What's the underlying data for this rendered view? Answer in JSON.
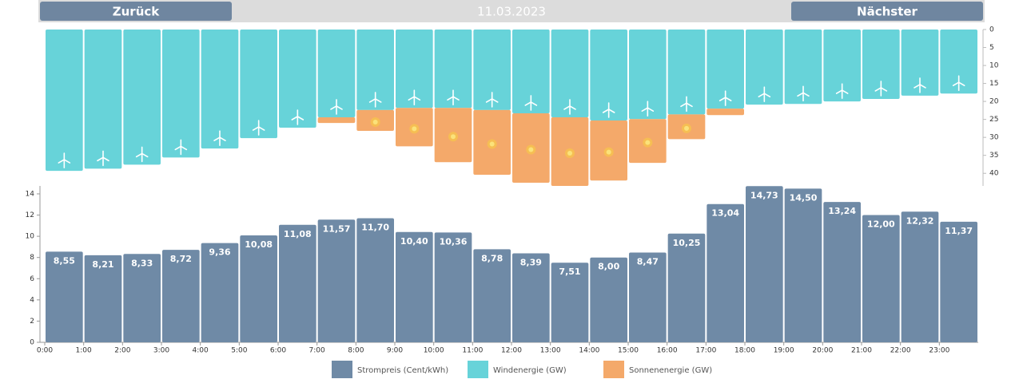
{
  "nav": {
    "back": "Zurück",
    "date": "11.03.2023",
    "next": "Nächster"
  },
  "chart_data": [
    {
      "type": "stacked_bar",
      "y_inverted": true,
      "y_axis_side": "right",
      "ylim": [
        0,
        43.5
      ],
      "yticks": [
        0,
        5,
        10,
        15,
        20,
        25,
        30,
        35,
        40
      ],
      "series": [
        {
          "name": "Windenergie (GW)",
          "color": "#67d3d9",
          "values": [
            39.3,
            38.7,
            37.6,
            35.6,
            33.1,
            30.2,
            27.3,
            24.4,
            22.4,
            21.8,
            21.8,
            22.4,
            23.3,
            24.4,
            25.3,
            24.9,
            23.6,
            22.0,
            20.9,
            20.7,
            20.0,
            19.3,
            18.4,
            17.8
          ]
        },
        {
          "name": "Sonnenenergie (GW)",
          "color": "#f4a96a",
          "values": [
            0,
            0,
            0,
            0,
            0,
            0,
            0,
            1.6,
            5.8,
            10.7,
            15.1,
            18.0,
            19.3,
            19.1,
            16.7,
            12.2,
            6.9,
            1.8,
            0,
            0,
            0,
            0,
            0,
            0
          ]
        }
      ]
    },
    {
      "type": "bar",
      "categories": [
        "0:00",
        "1:00",
        "2:00",
        "3:00",
        "4:00",
        "5:00",
        "6:00",
        "7:00",
        "8:00",
        "9:00",
        "10:00",
        "11:00",
        "12:00",
        "13:00",
        "14:00",
        "15:00",
        "16:00",
        "17:00",
        "18:00",
        "19:00",
        "20:00",
        "21:00",
        "22:00",
        "23:00"
      ],
      "ylim": [
        0,
        14.75
      ],
      "yticks": [
        0,
        2,
        4,
        6,
        8,
        10,
        12,
        14
      ],
      "series": [
        {
          "name": "Strompreis (Cent/kWh)",
          "color": "#6f8aa6",
          "values": [
            8.55,
            8.21,
            8.33,
            8.72,
            9.36,
            10.08,
            11.08,
            11.57,
            11.7,
            10.4,
            10.36,
            8.78,
            8.39,
            7.51,
            8.0,
            8.47,
            10.25,
            13.04,
            14.73,
            14.5,
            13.24,
            12.0,
            12.32,
            11.37
          ],
          "value_labels": [
            "8,55",
            "8,21",
            "8,33",
            "8,72",
            "9,36",
            "10,08",
            "11,08",
            "11,57",
            "11,70",
            "10,40",
            "10,36",
            "8,78",
            "8,39",
            "7,51",
            "8,00",
            "8,47",
            "10,25",
            "13,04",
            "14,73",
            "14,50",
            "13,24",
            "12,00",
            "12,32",
            "11,37"
          ]
        }
      ]
    }
  ]
}
